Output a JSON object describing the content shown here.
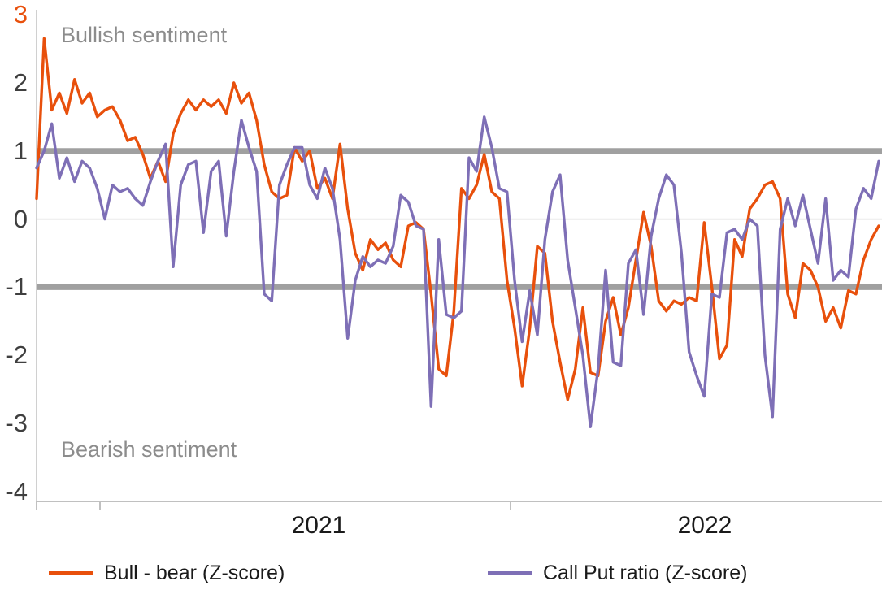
{
  "chart_data": {
    "type": "line",
    "title": "",
    "annotations": {
      "top": "Bullish sentiment",
      "bottom": "Bearish sentiment"
    },
    "y_axis": {
      "ticks": [
        3,
        2,
        1,
        0,
        -1,
        -2,
        -3,
        -4
      ],
      "range": [
        -4,
        3
      ]
    },
    "x_tick_labels": [
      "2021",
      "2022"
    ],
    "reference_lines": [
      1,
      -1
    ],
    "zero_gridline": true,
    "legend_position": "bottom",
    "series": [
      {
        "name": "Bull - bear (Z-score)",
        "color": "#e8500c",
        "values": [
          0.3,
          2.65,
          1.6,
          1.85,
          1.55,
          2.05,
          1.7,
          1.85,
          1.5,
          1.6,
          1.65,
          1.45,
          1.15,
          1.2,
          0.95,
          0.6,
          0.85,
          0.55,
          1.25,
          1.55,
          1.75,
          1.6,
          1.75,
          1.65,
          1.75,
          1.55,
          2.0,
          1.7,
          1.85,
          1.45,
          0.8,
          0.4,
          0.3,
          0.35,
          1.05,
          0.85,
          1.0,
          0.45,
          0.6,
          0.3,
          1.1,
          0.15,
          -0.5,
          -0.75,
          -0.3,
          -0.45,
          -0.35,
          -0.6,
          -0.7,
          -0.1,
          -0.05,
          -0.15,
          -1.1,
          -2.2,
          -2.3,
          -1.35,
          0.45,
          0.3,
          0.5,
          0.95,
          0.4,
          0.3,
          -0.9,
          -1.6,
          -2.45,
          -1.6,
          -0.4,
          -0.5,
          -1.5,
          -2.1,
          -2.65,
          -2.2,
          -1.3,
          -2.25,
          -2.3,
          -1.5,
          -1.15,
          -1.7,
          -1.3,
          -0.6,
          0.1,
          -0.4,
          -1.2,
          -1.35,
          -1.2,
          -1.25,
          -1.15,
          -1.2,
          -0.05,
          -1.0,
          -2.05,
          -1.85,
          -0.3,
          -0.55,
          0.15,
          0.3,
          0.5,
          0.55,
          0.3,
          -1.1,
          -1.45,
          -0.65,
          -0.75,
          -1.0,
          -1.5,
          -1.3,
          -1.6,
          -1.05,
          -1.1,
          -0.6,
          -0.3,
          -0.1
        ]
      },
      {
        "name": "Call Put ratio (Z-score)",
        "color": "#7e6fb6",
        "values": [
          0.75,
          1.0,
          1.4,
          0.6,
          0.9,
          0.55,
          0.85,
          0.75,
          0.45,
          0.0,
          0.5,
          0.4,
          0.45,
          0.3,
          0.2,
          0.55,
          0.85,
          1.1,
          -0.7,
          0.5,
          0.8,
          0.85,
          -0.2,
          0.7,
          0.85,
          -0.25,
          0.7,
          1.45,
          1.05,
          0.7,
          -1.1,
          -1.2,
          0.5,
          0.8,
          1.05,
          1.05,
          0.5,
          0.3,
          0.75,
          0.45,
          -0.3,
          -1.75,
          -0.9,
          -0.55,
          -0.7,
          -0.6,
          -0.65,
          -0.4,
          0.35,
          0.25,
          -0.1,
          -0.15,
          -2.75,
          -0.3,
          -1.4,
          -1.45,
          -1.35,
          0.9,
          0.7,
          1.5,
          1.05,
          0.45,
          0.4,
          -0.9,
          -1.8,
          -1.05,
          -1.7,
          -0.3,
          0.4,
          0.65,
          -0.6,
          -1.3,
          -2.0,
          -3.05,
          -2.2,
          -0.75,
          -2.1,
          -2.15,
          -0.65,
          -0.45,
          -1.4,
          -0.25,
          0.3,
          0.65,
          0.5,
          -0.5,
          -1.95,
          -2.3,
          -2.6,
          -1.1,
          -1.15,
          -0.2,
          -0.15,
          -0.3,
          0.0,
          -0.1,
          -2.0,
          -2.9,
          -0.15,
          0.3,
          -0.1,
          0.35,
          -0.15,
          -0.65,
          0.3,
          -0.9,
          -0.75,
          -0.85,
          0.15,
          0.45,
          0.3,
          0.85
        ]
      }
    ]
  },
  "colors": {
    "reference_line": "#a0a0a0",
    "zero_gridline": "#d9d9d9",
    "axis_line": "#c0c0c0",
    "annotation_text": "#8c8c8c",
    "axis_text": "#3f3f3f",
    "top_tick_text": "#e8500c"
  }
}
